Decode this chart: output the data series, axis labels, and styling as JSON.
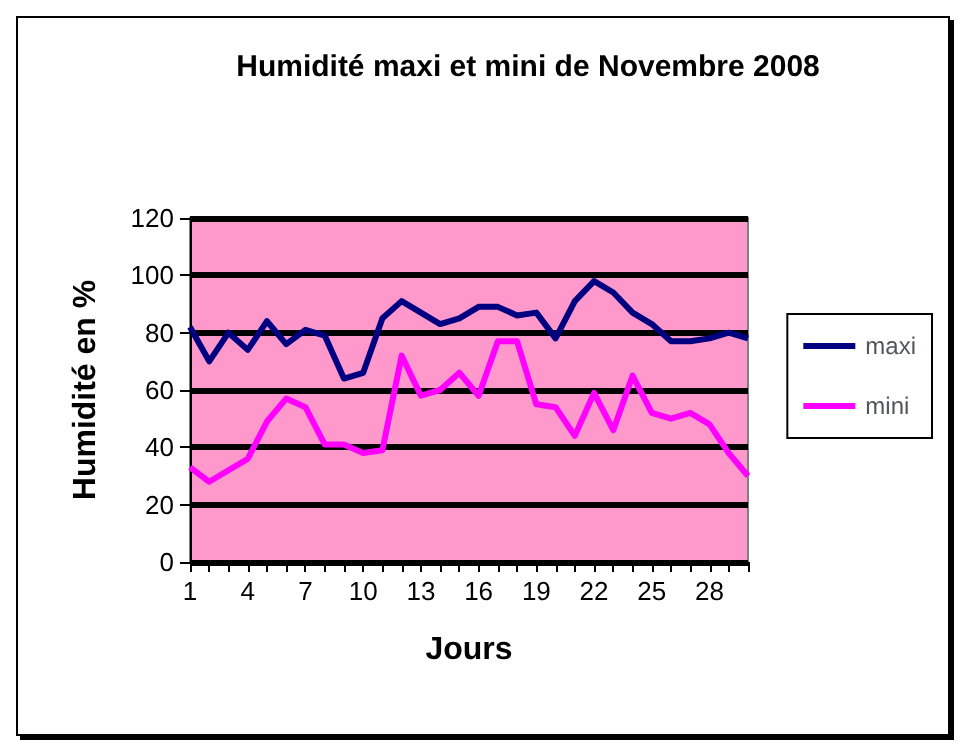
{
  "chart_data": {
    "type": "line",
    "title": "Humidité maxi et mini de Novembre 2008",
    "xlabel": "Jours",
    "ylabel": "Humidité en %",
    "categories": [
      "1",
      null,
      null,
      "4",
      null,
      null,
      "7",
      null,
      null,
      "10",
      null,
      null,
      "13",
      null,
      null,
      "16",
      null,
      null,
      "19",
      null,
      null,
      "22",
      null,
      null,
      "25",
      null,
      null,
      "28",
      null,
      null
    ],
    "series": [
      {
        "name": "maxi",
        "color": "#000080",
        "values": [
          82,
          70,
          80,
          74,
          84,
          76,
          81,
          79,
          64,
          66,
          85,
          91,
          87,
          83,
          85,
          89,
          89,
          86,
          87,
          78,
          91,
          98,
          94,
          87,
          83,
          77,
          77,
          78,
          80,
          78
        ]
      },
      {
        "name": "mini",
        "color": "#ff00ff",
        "values": [
          33,
          28,
          32,
          36,
          49,
          57,
          54,
          41,
          41,
          38,
          39,
          72,
          58,
          60,
          66,
          58,
          77,
          77,
          55,
          54,
          44,
          59,
          46,
          65,
          52,
          50,
          52,
          48,
          38,
          30
        ]
      }
    ],
    "ylim": [
      0,
      120
    ],
    "yticks": [
      0,
      20,
      40,
      60,
      80,
      100,
      120
    ],
    "grid": "y",
    "legend": "right",
    "marker": "none",
    "line_style": "solid"
  }
}
